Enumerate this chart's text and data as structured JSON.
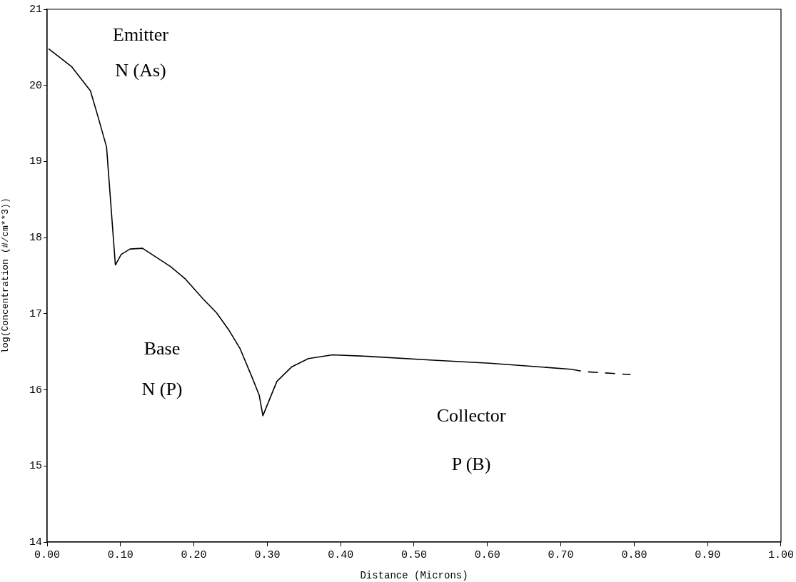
{
  "chart_data": {
    "type": "line",
    "xlabel": "Distance (Microns)",
    "ylabel": "log(Concentration (#/cm**3))",
    "series": [
      {
        "color": "#000000",
        "line_style": "solid",
        "x": [
          0.002,
          0.033,
          0.059,
          0.069,
          0.081,
          0.093,
          0.101,
          0.113,
          0.13,
          0.168,
          0.188,
          0.212,
          0.231,
          0.248,
          0.263,
          0.279,
          0.289,
          0.294,
          0.313,
          0.333,
          0.356,
          0.389,
          0.437,
          0.526,
          0.603,
          0.714
        ],
        "values": [
          20.48,
          20.25,
          19.93,
          19.6,
          19.19,
          17.64,
          17.78,
          17.85,
          17.86,
          17.62,
          17.46,
          17.2,
          17.01,
          16.78,
          16.54,
          16.17,
          15.93,
          15.66,
          16.11,
          16.3,
          16.41,
          16.46,
          16.44,
          16.39,
          16.35,
          16.27
        ]
      },
      {
        "color": "#000000",
        "line_style": "dashed",
        "x": [
          0.714,
          0.731,
          0.795
        ],
        "values": [
          16.27,
          16.24,
          16.2
        ]
      }
    ],
    "xlim": [
      0,
      1
    ],
    "ylim": [
      14,
      21
    ],
    "xticks": [
      {
        "value": 0,
        "label": "0.00"
      },
      {
        "value": 0.1,
        "label": "0.10"
      },
      {
        "value": 0.2,
        "label": "0.20"
      },
      {
        "value": 0.3,
        "label": "0.30"
      },
      {
        "value": 0.4,
        "label": "0.40"
      },
      {
        "value": 0.5,
        "label": "0.50"
      },
      {
        "value": 0.6,
        "label": "0.60"
      },
      {
        "value": 0.7,
        "label": "0.70"
      },
      {
        "value": 0.8,
        "label": "0.80"
      },
      {
        "value": 0.9,
        "label": "0.90"
      },
      {
        "value": 1,
        "label": "1.00"
      }
    ],
    "yticks": [
      14,
      15,
      16,
      17,
      18,
      19,
      20,
      21
    ],
    "grid": false,
    "legend": false,
    "marker": "none",
    "annotations": [
      "Emitter",
      "N (As)",
      "Base",
      "N (P)",
      "Collector",
      "P (B)"
    ]
  }
}
